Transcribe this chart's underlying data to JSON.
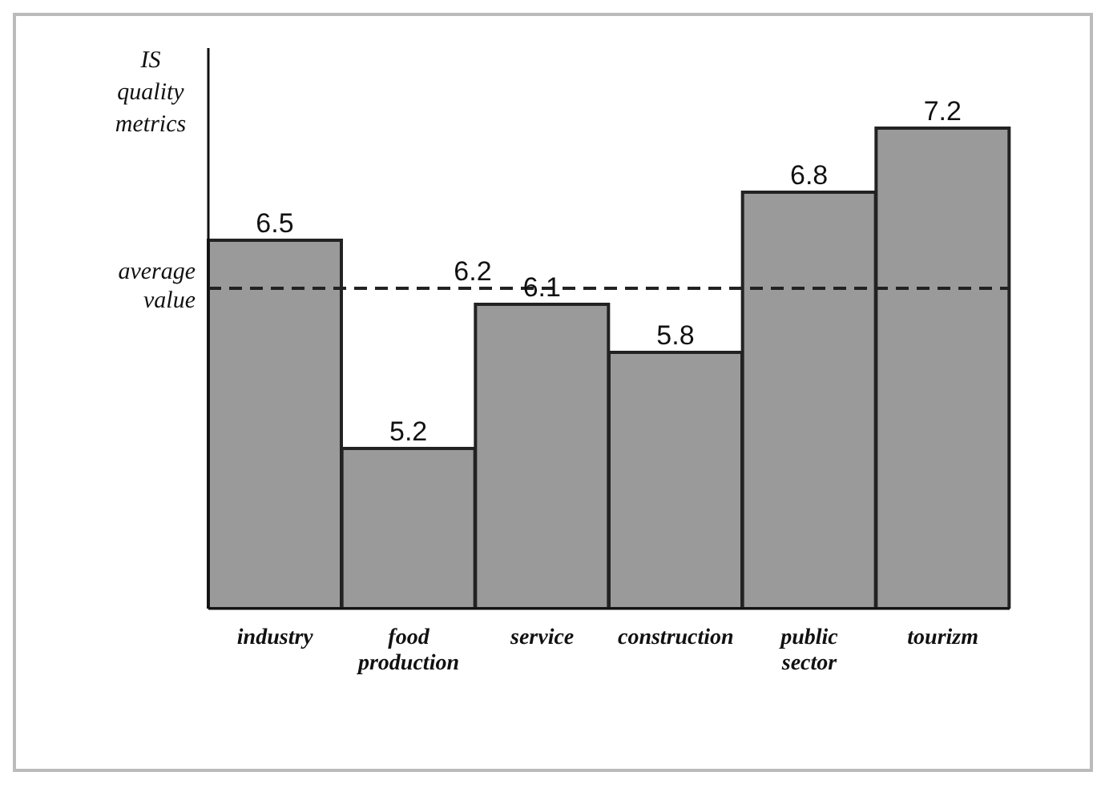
{
  "chart_data": {
    "type": "bar",
    "ylabel": "IS quality metrics",
    "categories": [
      "industry",
      "food production",
      "service",
      "construction",
      "public sector",
      "tourizm"
    ],
    "values": [
      6.5,
      5.2,
      6.1,
      5.8,
      6.8,
      7.2
    ],
    "color": "#9a9a9a",
    "ylim": [
      4.2,
      7.7
    ],
    "data_labels": true,
    "tick_labels": "x",
    "grid": false,
    "legend": false,
    "ref_lines": [
      {
        "axis": "y",
        "value": 6.2,
        "label": "average value",
        "line_style": "dashed",
        "color": "#222222"
      }
    ],
    "annotations": [
      {
        "text": "6.2",
        "x": "food production",
        "y": 6.2
      }
    ]
  }
}
